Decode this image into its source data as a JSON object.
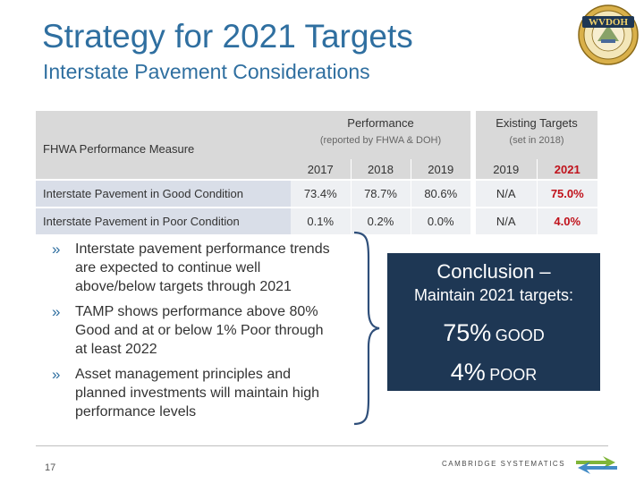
{
  "slide": {
    "title": "Strategy for 2021 Targets",
    "subtitle": "Interstate Pavement Considerations",
    "page_number": "17"
  },
  "logo": {
    "text": "WVDOH",
    "icon": "wvdoh-seal-icon"
  },
  "table": {
    "measure_header": "FHWA Performance Measure",
    "performance_header": "Performance",
    "performance_sub": "(reported by FHWA & DOH)",
    "existing_header": "Existing Targets",
    "existing_sub": "(set in 2018)",
    "years_performance": [
      "2017",
      "2018",
      "2019"
    ],
    "years_targets": [
      "2019",
      "2021"
    ],
    "rows": [
      {
        "measure": "Interstate Pavement in Good Condition",
        "values": [
          "73.4%",
          "78.7%",
          "80.6%"
        ],
        "targets": [
          "N/A",
          "75.0%"
        ]
      },
      {
        "measure": "Interstate Pavement in Poor Condition",
        "values": [
          "0.1%",
          "0.2%",
          "0.0%"
        ],
        "targets": [
          "N/A",
          "4.0%"
        ]
      }
    ]
  },
  "bullets": [
    "Interstate pavement performance trends are expected to continue well above/below targets through 2021",
    "TAMP shows performance above 80% Good and at or below 1% Poor through at least 2022",
    "Asset management principles and planned investments will maintain high performance levels"
  ],
  "bullet_marker": "»",
  "conclusion": {
    "heading": "Conclusion –",
    "subheading": "Maintain 2021 targets:",
    "good_value": "75%",
    "good_label": "GOOD",
    "poor_value": "4%",
    "poor_label": "POOR",
    "background_color": "#1e3754"
  },
  "footer": {
    "company": "CAMBRIDGE SYSTEMATICS",
    "icon": "cambridge-systematics-logo-icon"
  },
  "colors": {
    "title": "#2f6fa0",
    "target_red": "#c0121b"
  }
}
